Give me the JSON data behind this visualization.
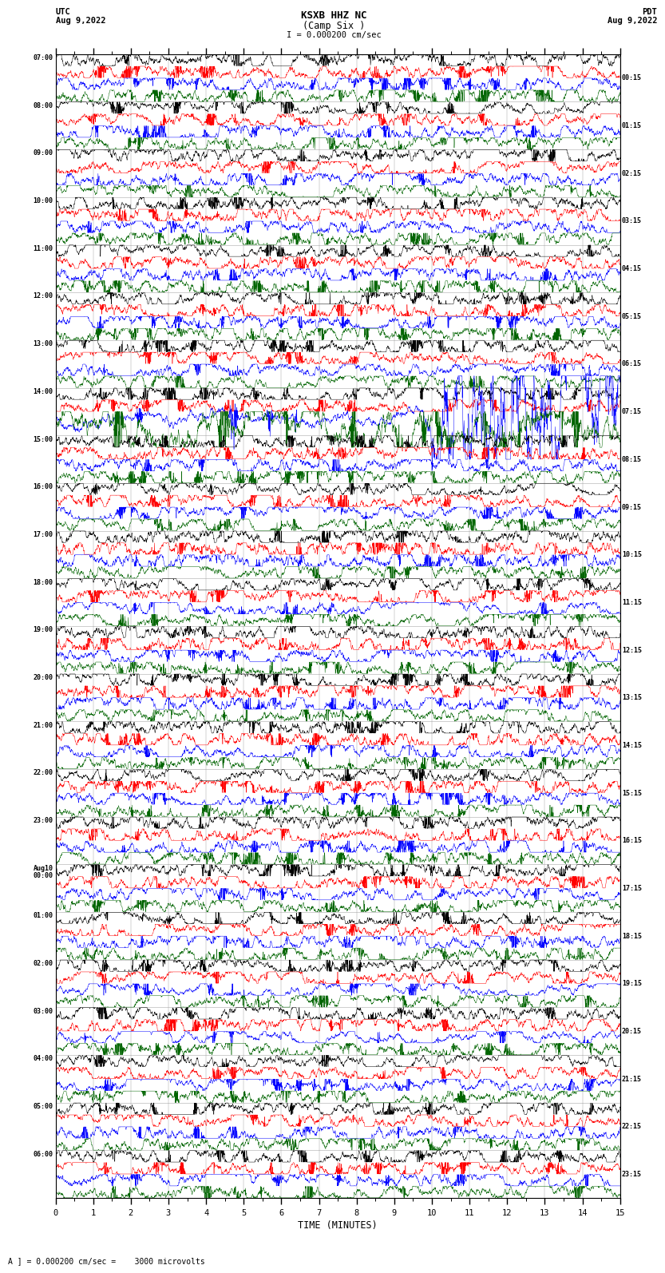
{
  "title_line1": "KSXB HHZ NC",
  "title_line2": "(Camp Six )",
  "scale_text": "I = 0.000200 cm/sec",
  "left_date_line1": "UTC",
  "left_date_line2": "Aug 9,2022",
  "right_date_line1": "PDT",
  "right_date_line2": "Aug 9,2022",
  "bottom_note": "A ] = 0.000200 cm/sec =    3000 microvolts",
  "xlabel": "TIME (MINUTES)",
  "background_color": "#ffffff",
  "plot_bg_color": "#ffffff",
  "colors": [
    "#000000",
    "#ff0000",
    "#0000ff",
    "#006400"
  ],
  "traces_per_row": 4,
  "minutes": 15,
  "rows": [
    "07:00",
    "08:00",
    "09:00",
    "10:00",
    "11:00",
    "12:00",
    "13:00",
    "14:00",
    "15:00",
    "16:00",
    "17:00",
    "18:00",
    "19:00",
    "20:00",
    "21:00",
    "22:00",
    "23:00",
    "Aug10\n00:00",
    "01:00",
    "02:00",
    "03:00",
    "04:00",
    "05:00",
    "06:00"
  ],
  "right_labels": [
    "00:15",
    "01:15",
    "02:15",
    "03:15",
    "04:15",
    "05:15",
    "06:15",
    "07:15",
    "08:15",
    "09:15",
    "10:15",
    "11:15",
    "12:15",
    "13:15",
    "14:15",
    "15:15",
    "16:15",
    "17:15",
    "18:15",
    "19:15",
    "20:15",
    "21:15",
    "22:15",
    "23:15"
  ],
  "special_blue_row": 7,
  "special_green_row": 7,
  "seed": 12345
}
